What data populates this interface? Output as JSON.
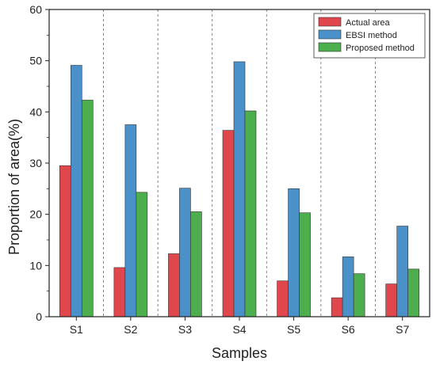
{
  "chart_data": {
    "type": "bar",
    "xlabel": "Samples",
    "ylabel": "Proportion of area(%)",
    "ylim": [
      0,
      60
    ],
    "yticks": [
      0,
      10,
      20,
      30,
      40,
      50,
      60
    ],
    "categories": [
      "S1",
      "S2",
      "S3",
      "S4",
      "S5",
      "S6",
      "S7"
    ],
    "series": [
      {
        "name": "Actual area",
        "color": "#e0474c",
        "values": [
          29.5,
          9.6,
          12.3,
          36.4,
          7.0,
          3.7,
          6.4
        ]
      },
      {
        "name": "EBSI method",
        "color": "#4a90c9",
        "values": [
          49.1,
          37.5,
          25.1,
          49.8,
          25.0,
          11.7,
          17.7
        ]
      },
      {
        "name": "Proposed method",
        "color": "#4cae4c",
        "values": [
          42.3,
          24.3,
          20.5,
          40.2,
          20.3,
          8.4,
          9.3
        ]
      }
    ],
    "legend": "top-right",
    "category_separators": "dashed"
  }
}
